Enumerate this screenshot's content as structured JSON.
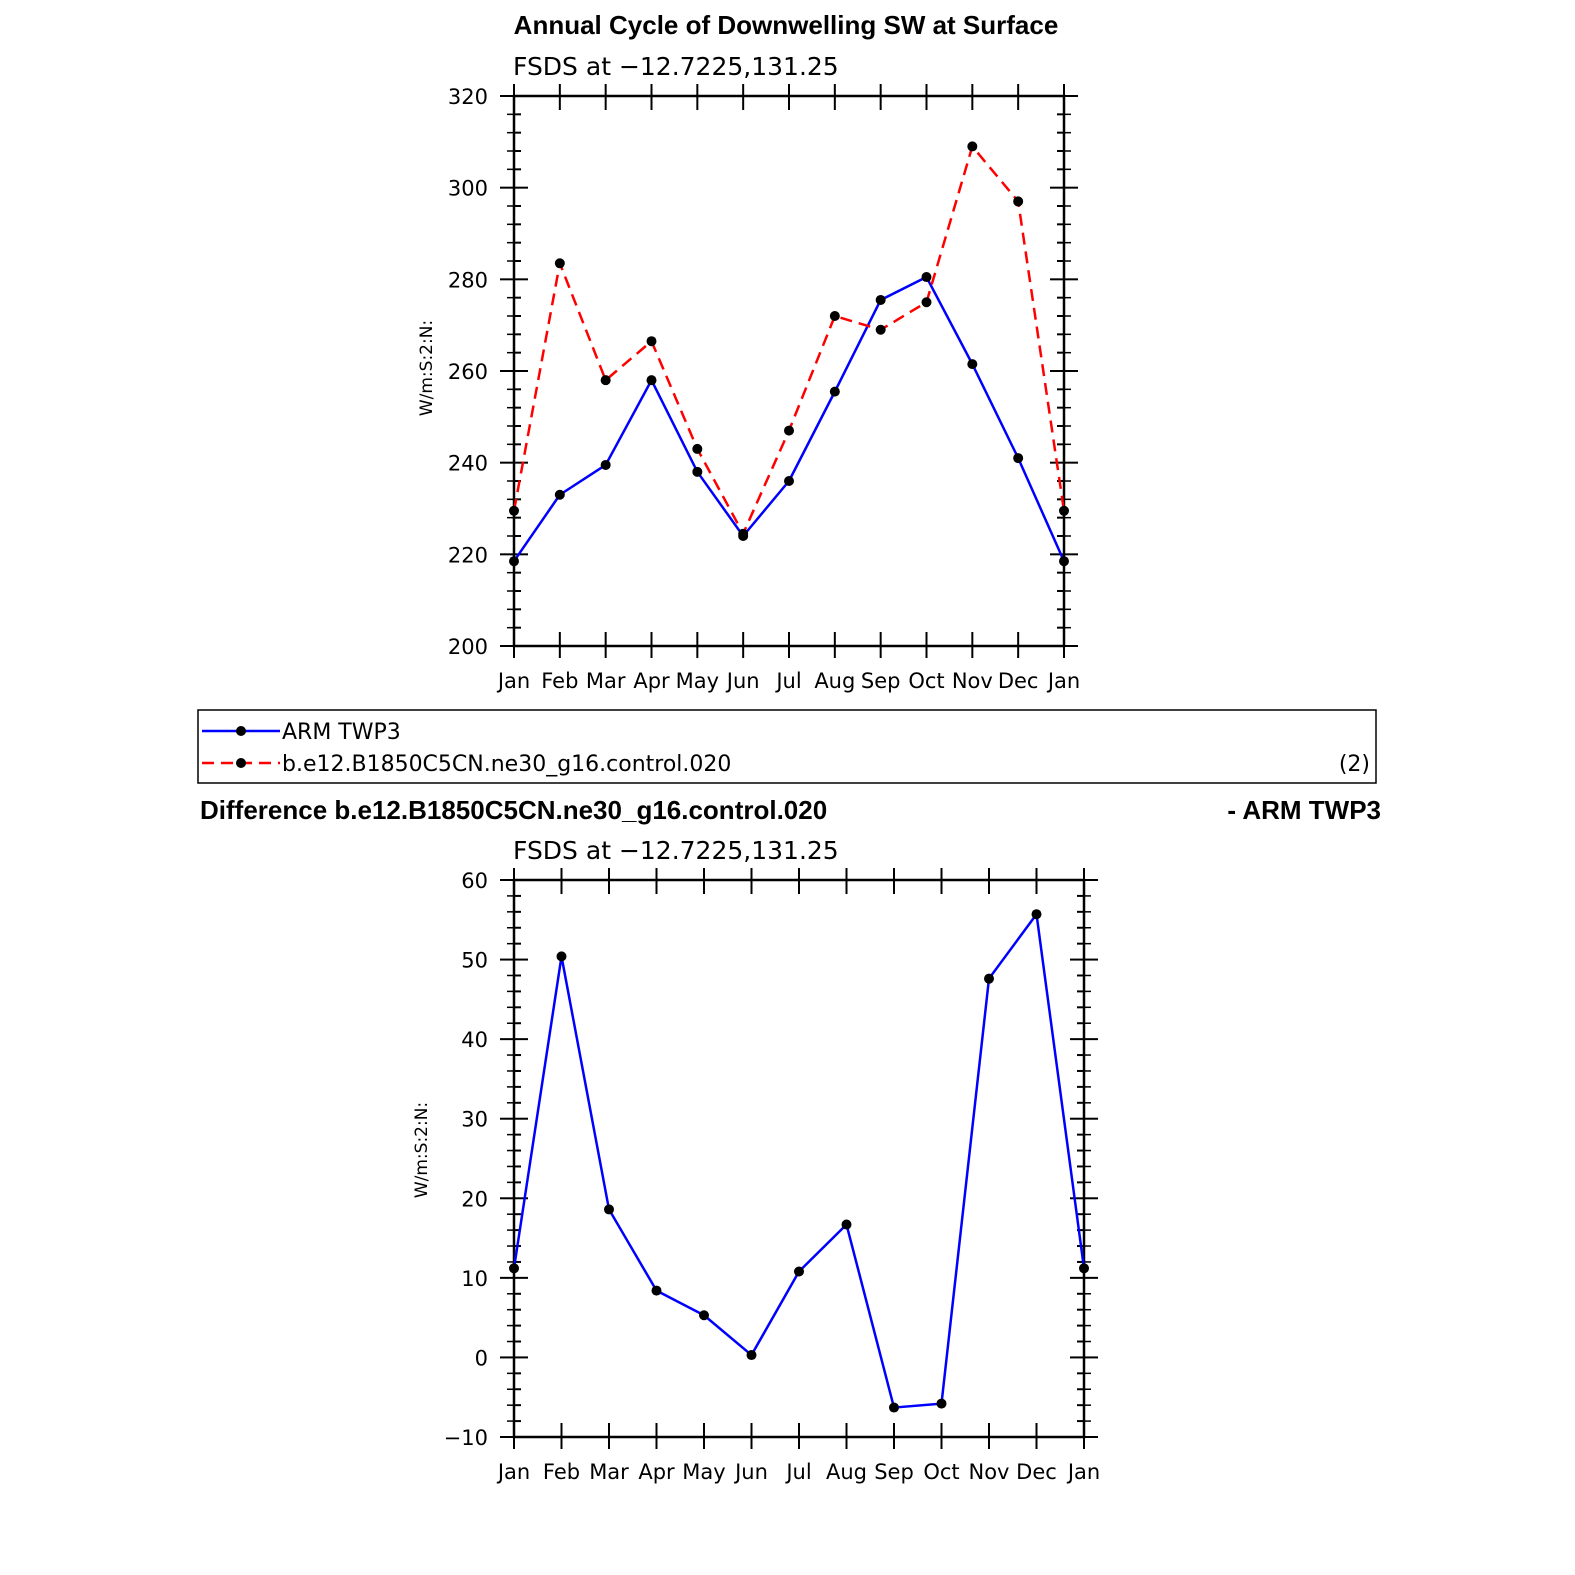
{
  "chart_data": [
    {
      "type": "line",
      "title": "Annual Cycle of Downwelling SW at Surface",
      "subtitle": "FSDS at −12.7225,131.25",
      "ylabel": "W/m:S:2:N:",
      "xlabel": "",
      "categories": [
        "Jan",
        "Feb",
        "Mar",
        "Apr",
        "May",
        "Jun",
        "Jul",
        "Aug",
        "Sep",
        "Oct",
        "Nov",
        "Dec",
        "Jan"
      ],
      "ylim": [
        200,
        320
      ],
      "yticks": [
        200,
        220,
        240,
        260,
        280,
        300,
        320
      ],
      "series": [
        {
          "name": "ARM TWP3",
          "color": "#0000ff",
          "dash": "solid",
          "values": [
            218.5,
            233.0,
            239.5,
            258.0,
            238.0,
            224.0,
            236.0,
            255.5,
            275.5,
            280.5,
            261.5,
            241.0,
            218.5
          ]
        },
        {
          "name": "b.e12.B1850C5CN.ne30_g16.control.020",
          "color": "#ff0000",
          "dash": "dashed",
          "values": [
            229.5,
            283.5,
            258.0,
            266.5,
            243.0,
            224.5,
            247.0,
            272.0,
            269.0,
            275.0,
            309.0,
            297.0,
            229.5
          ]
        }
      ],
      "legend": {
        "placement": "below",
        "items": [
          "ARM TWP3",
          "b.e12.B1850C5CN.ne30_g16.control.020"
        ],
        "note": "(2)"
      }
    },
    {
      "type": "line",
      "title_left": "Difference b.e12.B1850C5CN.ne30_g16.control.020",
      "title_right": "- ARM TWP3",
      "subtitle": "FSDS at −12.7225,131.25",
      "ylabel": "W/m:S:2:N:",
      "xlabel": "",
      "categories": [
        "Jan",
        "Feb",
        "Mar",
        "Apr",
        "May",
        "Jun",
        "Jul",
        "Aug",
        "Sep",
        "Oct",
        "Nov",
        "Dec",
        "Jan"
      ],
      "ylim": [
        -10,
        60
      ],
      "yticks": [
        -10,
        0,
        10,
        20,
        30,
        40,
        50,
        60
      ],
      "ytick_labels": [
        "−10",
        "0",
        "10",
        "20",
        "30",
        "40",
        "50",
        "60"
      ],
      "series": [
        {
          "color": "#0000ff",
          "dash": "solid",
          "values": [
            11.2,
            50.4,
            18.6,
            8.4,
            5.3,
            0.3,
            10.8,
            16.7,
            -6.3,
            -5.8,
            47.6,
            55.7,
            11.2
          ]
        }
      ]
    }
  ]
}
